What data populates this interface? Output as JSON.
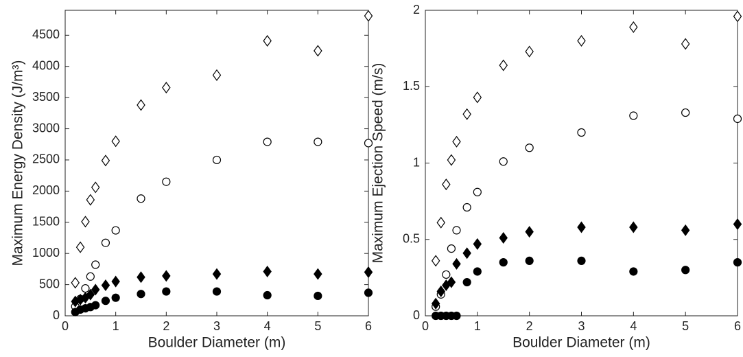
{
  "chart_data": [
    {
      "type": "scatter",
      "xlabel": "Boulder Diameter (m)",
      "ylabel": "Maximum Energy Density (J/m³)",
      "xlim": [
        0,
        6
      ],
      "ylim": [
        0,
        4900
      ],
      "xticks": [
        0,
        1,
        2,
        3,
        4,
        5,
        6
      ],
      "yticks": [
        0,
        500,
        1000,
        1500,
        2000,
        2500,
        3000,
        3500,
        4000,
        4500
      ],
      "x": [
        0.2,
        0.3,
        0.4,
        0.5,
        0.6,
        0.8,
        1,
        1.5,
        2,
        3,
        4,
        5,
        6
      ],
      "series": [
        {
          "marker": "diamond",
          "filled": false,
          "color": "#000000",
          "values": [
            530,
            1100,
            1510,
            1860,
            2060,
            2490,
            2800,
            3380,
            3660,
            3860,
            4410,
            4250,
            4810
          ]
        },
        {
          "marker": "circle",
          "filled": false,
          "color": "#000000",
          "values": [
            150,
            270,
            440,
            630,
            820,
            1170,
            1370,
            1880,
            2150,
            2500,
            2790,
            2790,
            2770
          ]
        },
        {
          "marker": "diamond",
          "filled": true,
          "color": "#000000",
          "values": [
            230,
            260,
            290,
            340,
            420,
            490,
            550,
            620,
            640,
            670,
            710,
            670,
            700
          ]
        },
        {
          "marker": "circle",
          "filled": true,
          "color": "#000000",
          "values": [
            60,
            100,
            120,
            140,
            170,
            240,
            290,
            350,
            390,
            390,
            330,
            320,
            370
          ]
        }
      ]
    },
    {
      "type": "scatter",
      "xlabel": "Boulder Diameter (m)",
      "ylabel": "Maximum Ejection Speed (m/s)",
      "xlim": [
        0,
        6
      ],
      "ylim": [
        0,
        2
      ],
      "xticks": [
        0,
        1,
        2,
        3,
        4,
        5,
        6
      ],
      "yticks": [
        0,
        0.5,
        1,
        1.5,
        2
      ],
      "x": [
        0.2,
        0.3,
        0.4,
        0.5,
        0.6,
        0.8,
        1,
        1.5,
        2,
        3,
        4,
        5,
        6
      ],
      "series": [
        {
          "marker": "diamond",
          "filled": false,
          "color": "#000000",
          "values": [
            0.36,
            0.61,
            0.86,
            1.02,
            1.14,
            1.32,
            1.43,
            1.64,
            1.73,
            1.8,
            1.89,
            1.78,
            1.96
          ]
        },
        {
          "marker": "circle",
          "filled": false,
          "color": "#000000",
          "values": [
            0.06,
            0.14,
            0.27,
            0.44,
            0.56,
            0.71,
            0.81,
            1.01,
            1.1,
            1.2,
            1.31,
            1.33,
            1.29
          ]
        },
        {
          "marker": "diamond",
          "filled": true,
          "color": "#000000",
          "values": [
            0.08,
            0.16,
            0.2,
            0.22,
            0.34,
            0.41,
            0.47,
            0.51,
            0.55,
            0.58,
            0.58,
            0.56,
            0.6
          ]
        },
        {
          "marker": "circle",
          "filled": true,
          "color": "#000000",
          "values": [
            0,
            0,
            0,
            0,
            0,
            0.22,
            0.29,
            0.35,
            0.36,
            0.36,
            0.29,
            0.3,
            0.35
          ]
        }
      ]
    }
  ]
}
